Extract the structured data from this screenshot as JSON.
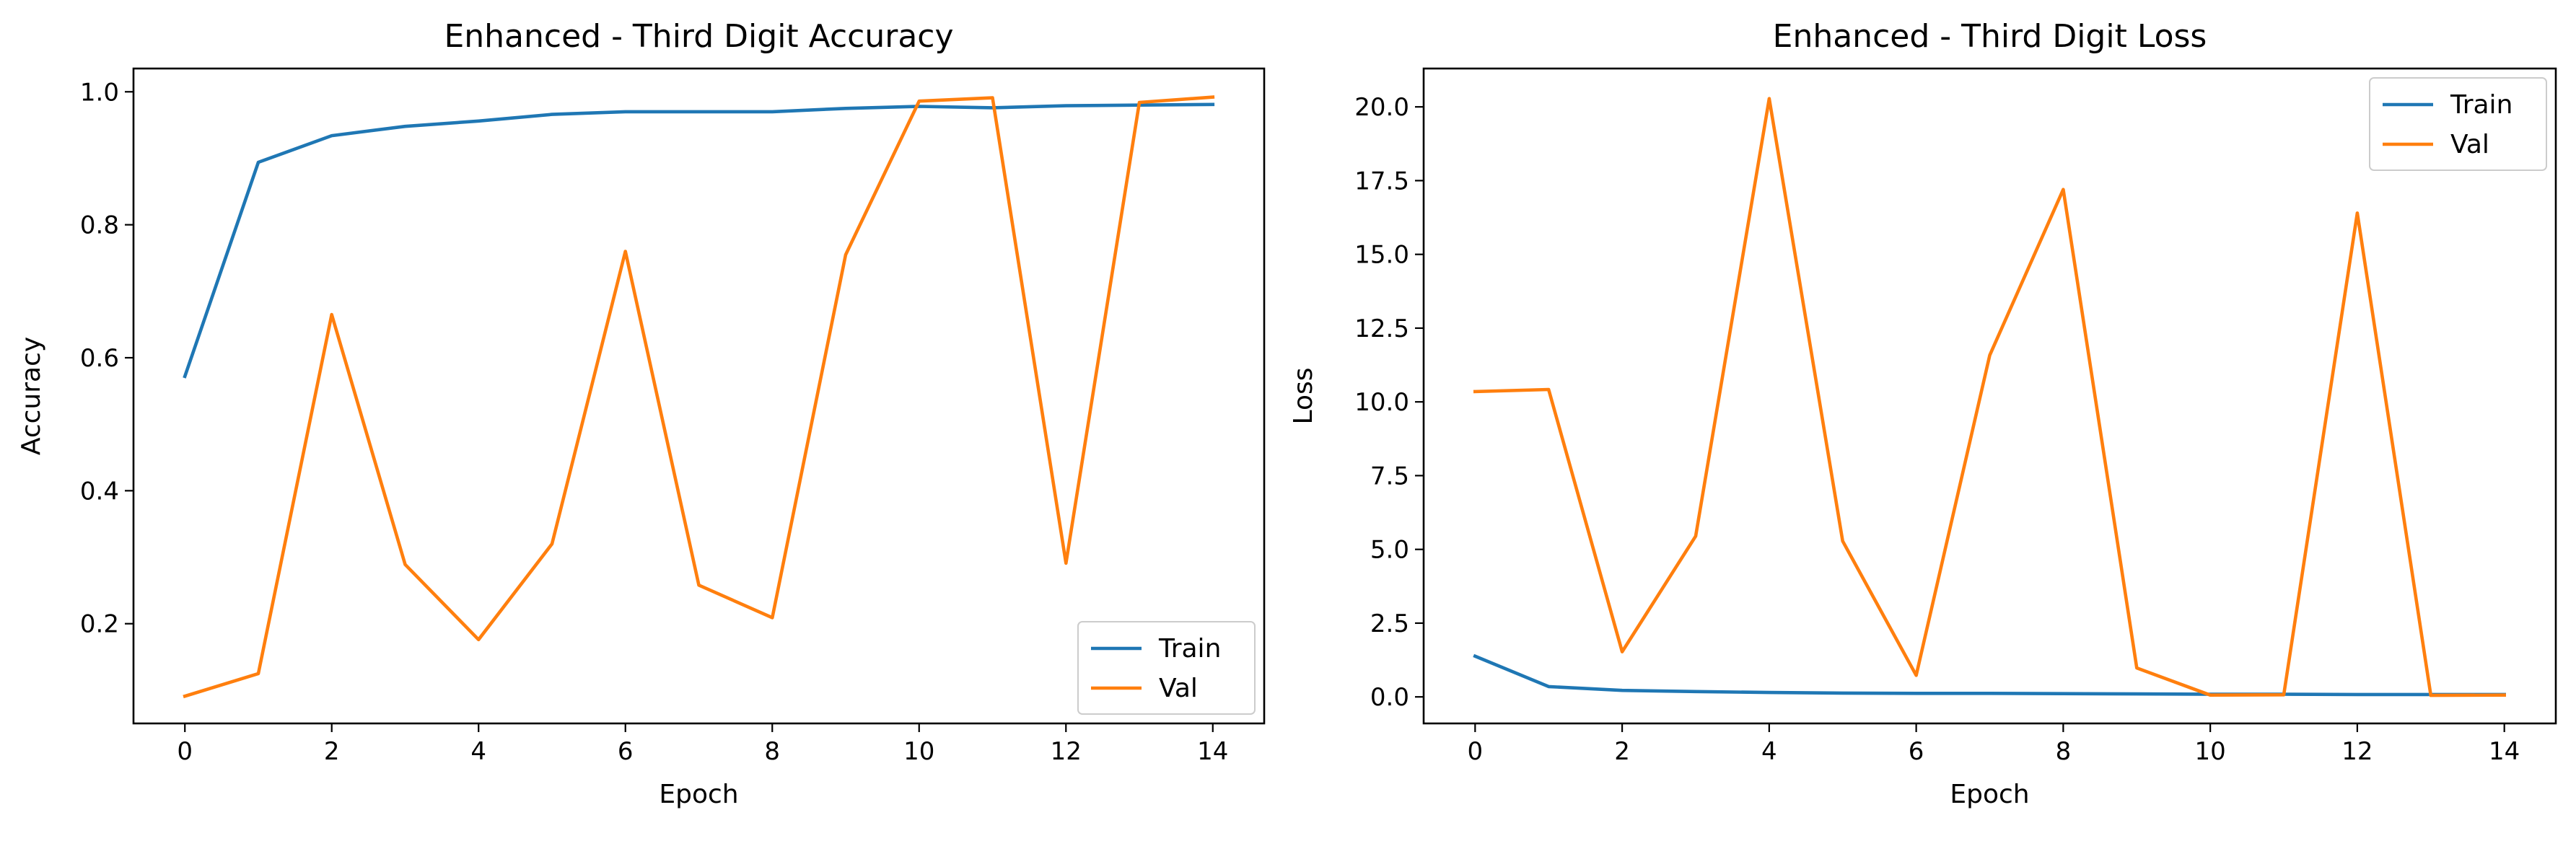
{
  "chart_data": [
    {
      "type": "line",
      "title": "Enhanced - Third Digit Accuracy",
      "xlabel": "Epoch",
      "ylabel": "Accuracy",
      "x": [
        0,
        1,
        2,
        3,
        4,
        5,
        6,
        7,
        8,
        9,
        10,
        11,
        12,
        13,
        14
      ],
      "xlim": [
        -0.7,
        14.7
      ],
      "ylim": [
        0.05,
        1.035
      ],
      "xticks": [
        0,
        2,
        4,
        6,
        8,
        10,
        12,
        14
      ],
      "xticklabels": [
        "0",
        "2",
        "4",
        "6",
        "8",
        "10",
        "12",
        "14"
      ],
      "yticks": [
        0.2,
        0.4,
        0.6,
        0.8,
        1.0
      ],
      "yticklabels": [
        "0.2",
        "0.4",
        "0.6",
        "0.8",
        "1.0"
      ],
      "legend": "lower-right",
      "grid": false,
      "series": [
        {
          "name": "Train",
          "color": "#1f77b4",
          "values": [
            0.572,
            0.894,
            0.934,
            0.948,
            0.956,
            0.966,
            0.97,
            0.97,
            0.97,
            0.975,
            0.978,
            0.976,
            0.979,
            0.98,
            0.981
          ]
        },
        {
          "name": "Val",
          "color": "#ff7f0e",
          "values": [
            0.091,
            0.125,
            0.665,
            0.289,
            0.176,
            0.32,
            0.76,
            0.258,
            0.209,
            0.755,
            0.986,
            0.991,
            0.291,
            0.984,
            0.992
          ]
        }
      ]
    },
    {
      "type": "line",
      "title": "Enhanced - Third Digit Loss",
      "xlabel": "Epoch",
      "ylabel": "Loss",
      "x": [
        0,
        1,
        2,
        3,
        4,
        5,
        6,
        7,
        8,
        9,
        10,
        11,
        12,
        13,
        14
      ],
      "xlim": [
        -0.7,
        14.7
      ],
      "ylim": [
        -0.9,
        21.3
      ],
      "xticks": [
        0,
        2,
        4,
        6,
        8,
        10,
        12,
        14
      ],
      "xticklabels": [
        "0",
        "2",
        "4",
        "6",
        "8",
        "10",
        "12",
        "14"
      ],
      "yticks": [
        0,
        2.5,
        5,
        7.5,
        10,
        12.5,
        15,
        17.5,
        20
      ],
      "yticklabels": [
        "0.0",
        "2.5",
        "5.0",
        "7.5",
        "10.0",
        "12.5",
        "15.0",
        "17.5",
        "20.0"
      ],
      "legend": "top-right",
      "grid": false,
      "series": [
        {
          "name": "Train",
          "color": "#1f77b4",
          "values": [
            1.38,
            0.35,
            0.22,
            0.18,
            0.15,
            0.13,
            0.12,
            0.12,
            0.11,
            0.1,
            0.09,
            0.09,
            0.08,
            0.08,
            0.08
          ]
        },
        {
          "name": "Val",
          "color": "#ff7f0e",
          "values": [
            10.35,
            10.42,
            1.53,
            5.45,
            20.28,
            5.28,
            0.73,
            11.58,
            17.2,
            0.98,
            0.06,
            0.07,
            16.4,
            0.05,
            0.06
          ]
        }
      ]
    }
  ]
}
